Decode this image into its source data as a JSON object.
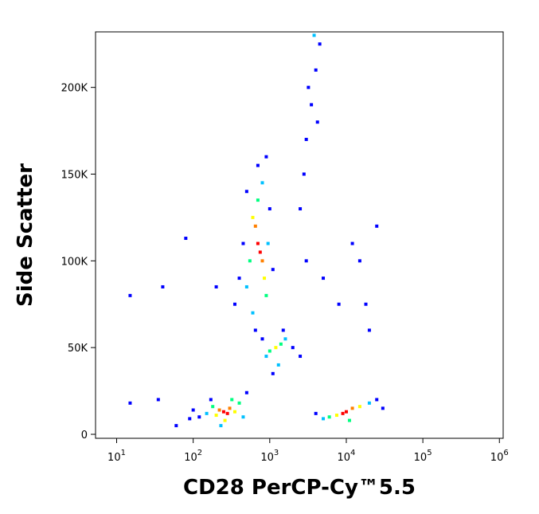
{
  "chart_data": {
    "type": "scatter",
    "x_label": "CD28 PerCP-Cy™5.5",
    "y_label": "Side Scatter",
    "log_x": true,
    "xlim": [
      5.3,
      1120000
    ],
    "ylim": [
      -2300,
      232000
    ],
    "xticks": [
      {
        "value": 10,
        "label": "10",
        "exponent": "1"
      },
      {
        "value": 100,
        "label": "10",
        "exponent": "2"
      },
      {
        "value": 1000,
        "label": "10",
        "exponent": "3"
      },
      {
        "value": 10000,
        "label": "10",
        "exponent": "4"
      },
      {
        "value": 100000,
        "label": "10",
        "exponent": "5"
      },
      {
        "value": 1000000,
        "label": "10",
        "exponent": "6"
      }
    ],
    "yticks": [
      0,
      {
        "value": 50000,
        "label": "50K"
      },
      {
        "value": 100000,
        "label": "100K"
      },
      {
        "value": 150000,
        "label": "150K"
      },
      {
        "value": 200000,
        "label": "200K"
      }
    ],
    "x": [
      250,
      280,
      220,
      300,
      200,
      350,
      180,
      150,
      400,
      120,
      100,
      450,
      260,
      320,
      500,
      90,
      230,
      170,
      10000,
      9000,
      12000,
      7500,
      15000,
      6000,
      20000,
      5000,
      25000,
      4000,
      11000,
      30000,
      750,
      700,
      800,
      650,
      850,
      600,
      900,
      700,
      550,
      950,
      500,
      800,
      600,
      450,
      1000,
      700,
      400,
      1100,
      350,
      900,
      500,
      650,
      1200,
      1000,
      1400,
      900,
      1600,
      1300,
      2000,
      800,
      2500,
      1100,
      1500,
      3000,
      3500,
      4000,
      4500,
      3800,
      3200,
      2800,
      4200,
      2500,
      15,
      80,
      40,
      200,
      12000,
      15000,
      18000,
      8000,
      20000,
      25000,
      35,
      15,
      60,
      3000,
      5000
    ],
    "values": [
      13000,
      12000,
      14000,
      15000,
      11000,
      13000,
      16000,
      12000,
      18000,
      10000,
      14000,
      10000,
      8000,
      20000,
      24000,
      9000,
      5000,
      20000,
      13000,
      12000,
      15000,
      11000,
      16000,
      10000,
      18000,
      9000,
      20000,
      12000,
      8000,
      15000,
      105000,
      110000,
      100000,
      120000,
      90000,
      125000,
      80000,
      135000,
      100000,
      110000,
      85000,
      145000,
      70000,
      110000,
      130000,
      155000,
      90000,
      95000,
      75000,
      160000,
      140000,
      60000,
      50000,
      48000,
      52000,
      45000,
      55000,
      40000,
      50000,
      55000,
      45000,
      35000,
      60000,
      170000,
      190000,
      210000,
      225000,
      230000,
      200000,
      150000,
      180000,
      130000,
      80000,
      113000,
      85000,
      85000,
      110000,
      100000,
      75000,
      75000,
      60000,
      120000,
      20000,
      18000,
      5000,
      100000,
      90000
    ],
    "colors": [
      "#ff0000",
      "#ff0000",
      "#ff8000",
      "#ff8000",
      "#ffff00",
      "#ffff00",
      "#00ff80",
      "#00c0ff",
      "#00ff80",
      "#0000ff",
      "#0000ff",
      "#00c0ff",
      "#ffff00",
      "#00ff80",
      "#0000ff",
      "#0000ff",
      "#00c0ff",
      "#0000ff",
      "#ff0000",
      "#ff0000",
      "#ff8000",
      "#ffff00",
      "#ffff00",
      "#00ff80",
      "#00c0ff",
      "#00c0ff",
      "#0000ff",
      "#0000ff",
      "#00ff80",
      "#0000ff",
      "#ff0000",
      "#ff0000",
      "#ff8000",
      "#ff8000",
      "#ffff00",
      "#ffff00",
      "#00ff80",
      "#00ff80",
      "#00ff80",
      "#00c0ff",
      "#00c0ff",
      "#00c0ff",
      "#00c0ff",
      "#0000ff",
      "#0000ff",
      "#0000ff",
      "#0000ff",
      "#0000ff",
      "#0000ff",
      "#0000ff",
      "#0000ff",
      "#0000ff",
      "#ffff00",
      "#00ff80",
      "#00ff80",
      "#00c0ff",
      "#00c0ff",
      "#00c0ff",
      "#0000ff",
      "#0000ff",
      "#0000ff",
      "#0000ff",
      "#0000ff",
      "#0000ff",
      "#0000ff",
      "#0000ff",
      "#0000ff",
      "#00c0ff",
      "#0000ff",
      "#0000ff",
      "#0000ff",
      "#0000ff",
      "#0000ff",
      "#0000ff",
      "#0000ff",
      "#0000ff",
      "#0000ff",
      "#0000ff",
      "#0000ff",
      "#0000ff",
      "#0000ff",
      "#0000ff",
      "#0000ff",
      "#0000ff",
      "#0000ff",
      "#0000ff",
      "#0000ff"
    ]
  }
}
